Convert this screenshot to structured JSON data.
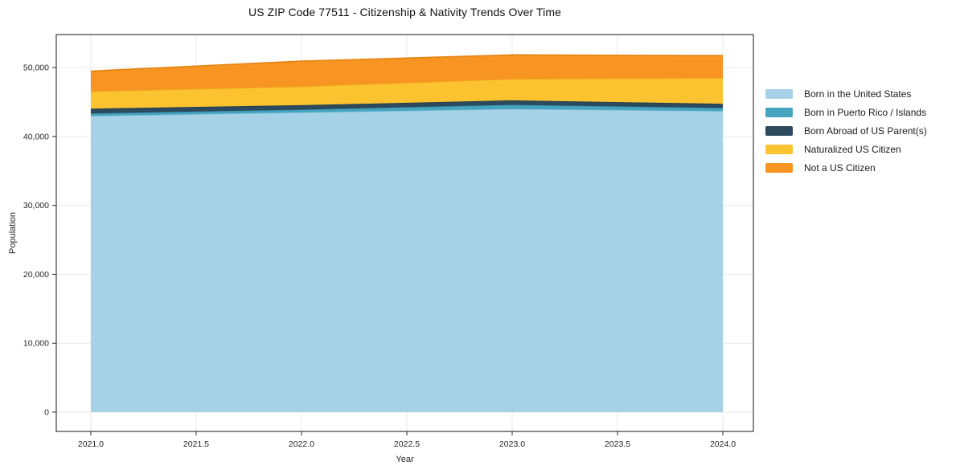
{
  "title": "US ZIP Code 77511 - Citizenship & Nativity Trends Over Time",
  "chart_data": {
    "type": "area",
    "stacked": true,
    "title": "US ZIP Code 77511 - Citizenship & Nativity Trends Over Time",
    "xlabel": "Year",
    "ylabel": "Population",
    "x": [
      2021,
      2022,
      2023,
      2024
    ],
    "series": [
      {
        "name": "Born in the United States",
        "color": "#a5d2e6",
        "edge": "#84bcd8",
        "values": [
          43000,
          43500,
          44000,
          43700
        ]
      },
      {
        "name": "Born in Puerto Rico / Islands",
        "color": "#45a5bf",
        "edge": "#3690ab",
        "values": [
          350,
          400,
          600,
          450
        ]
      },
      {
        "name": "Born Abroad of US Parent(s)",
        "color": "#2c4a5e",
        "edge": "#203b4d",
        "values": [
          700,
          650,
          650,
          600
        ]
      },
      {
        "name": "Naturalized US Citizen",
        "color": "#fcc330",
        "edge": "#edb11c",
        "values": [
          2500,
          2700,
          3100,
          3750
        ]
      },
      {
        "name": "Not a US Citizen",
        "color": "#f79422",
        "edge": "#e3820e",
        "values": [
          2950,
          3700,
          3500,
          3250
        ]
      }
    ],
    "totals": [
      49500,
      50950,
      51850,
      51750
    ],
    "xticks": {
      "values": [
        2021.0,
        2021.5,
        2022.0,
        2022.5,
        2023.0,
        2023.5,
        2024.0
      ],
      "labels": [
        "2021.0",
        "2021.5",
        "2022.0",
        "2022.5",
        "2023.0",
        "2023.5",
        "2024.0"
      ]
    },
    "yticks": {
      "values": [
        0,
        10000,
        20000,
        30000,
        40000,
        50000
      ],
      "labels": [
        "0",
        "10,000",
        "20,000",
        "30,000",
        "40,000",
        "50,000"
      ]
    },
    "xlim": [
      2020.836,
      2024.145
    ],
    "ylim": [
      -2800,
      54800
    ],
    "grid": true,
    "grid_color": "#eaeaea",
    "spine_color": "#2b2b2b",
    "legend_position": "right"
  }
}
